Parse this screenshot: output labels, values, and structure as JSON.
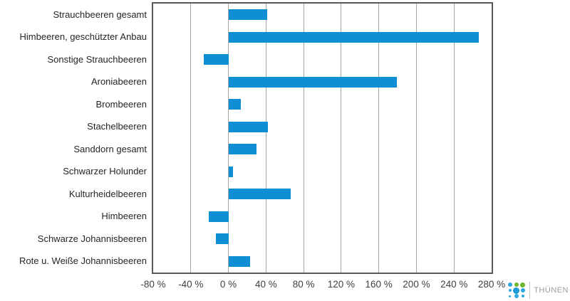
{
  "chart_data": {
    "type": "bar",
    "orientation": "horizontal",
    "title": "",
    "xlabel": "",
    "ylabel": "",
    "unit": "%",
    "categories": [
      "Strauchbeeren gesamt",
      "Himbeeren, geschützter Anbau",
      "Sonstige Strauchbeeren",
      "Aroniabeeren",
      "Brombeeren",
      "Stachelbeeren",
      "Sanddorn gesamt",
      "Schwarzer Holunder",
      "Kulturheidelbeeren",
      "Himbeeren",
      "Schwarze Johannisbeeren",
      "Rote u. Weiße Johannisbeeren"
    ],
    "values": [
      41,
      266,
      -26,
      179,
      13,
      42,
      30,
      5,
      66,
      -21,
      -13,
      23
    ],
    "xlim": [
      -80,
      280
    ],
    "tick_step": 40,
    "tick_labels": [
      "-80 %",
      "-40 %",
      "0 %",
      "40 %",
      "80 %",
      "120 %",
      "160 %",
      "200 %",
      "240 %",
      "280 %"
    ],
    "grid": true,
    "legend": false,
    "bar_color": "#0e8fd4",
    "gridline_color": "#a6a6a6",
    "axis_border_color": "#595959"
  },
  "logo": {
    "text": "THÜNEN",
    "text_color": "#9d9d9c",
    "dots": [
      {
        "color": "#2fa8e0",
        "size": 6
      },
      {
        "color": "#6cb52d",
        "size": 6
      },
      {
        "color": "#6cb52d",
        "size": 7
      },
      {
        "color": "#2fa8e0",
        "size": 4
      },
      {
        "color": "#1e9cd7",
        "size": 9
      },
      {
        "color": "#2fa8e0",
        "size": 6
      },
      {
        "color": "#2fa8e0",
        "size": 3
      },
      {
        "color": "#2fa8e0",
        "size": 6
      },
      {
        "color": "#2fa8e0",
        "size": 4
      }
    ]
  }
}
